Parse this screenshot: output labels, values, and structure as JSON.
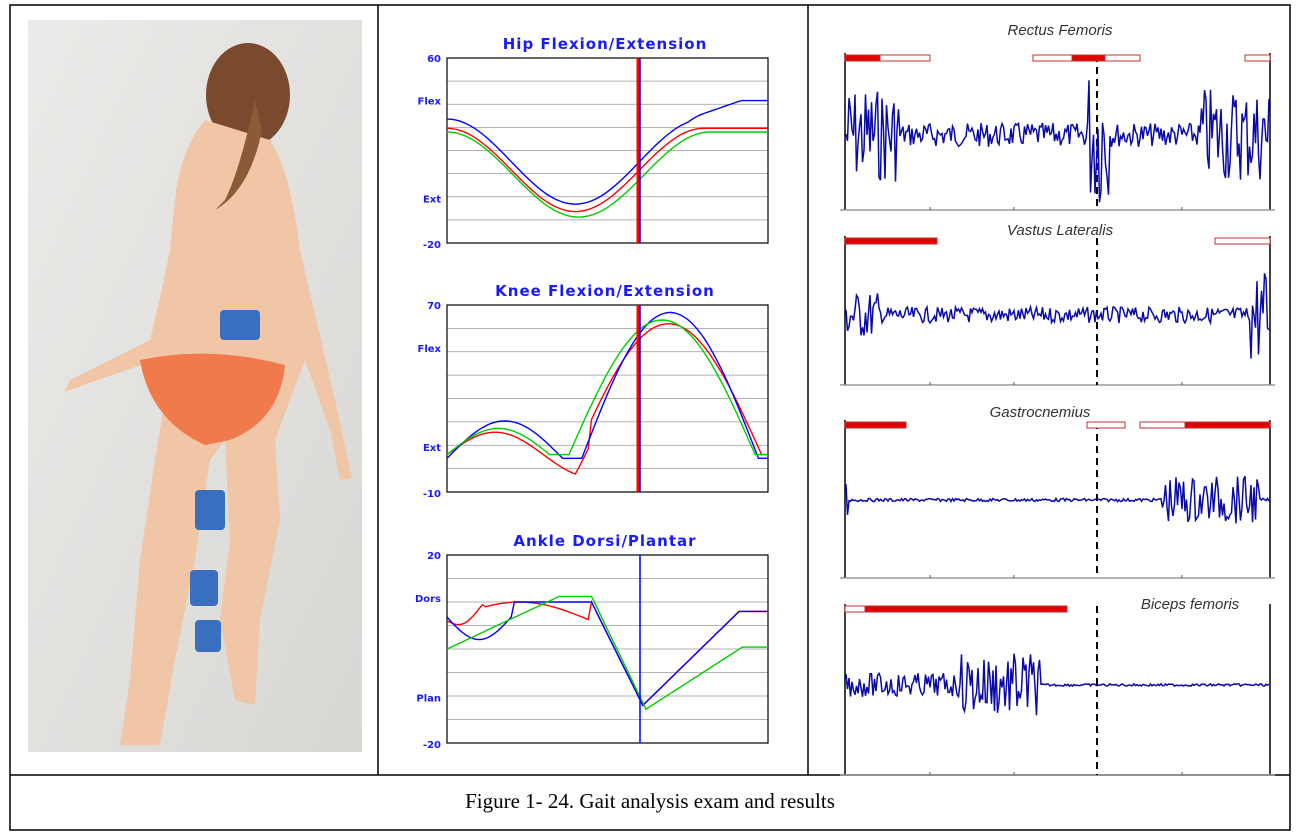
{
  "figure": {
    "angle_charts": [
      {
        "title": "Hip Flexion/Extension",
        "y_max": "60",
        "upper_label": "Flex",
        "lower_label": "Ext",
        "y_min": "-20"
      },
      {
        "title": "Knee Flexion/Extension",
        "y_max": "70",
        "upper_label": "Flex",
        "lower_label": "Ext",
        "y_min": "-10"
      },
      {
        "title": "Ankle Dorsi/Plantar",
        "y_max": "20",
        "upper_label": "Dors",
        "lower_label": "Plan",
        "y_min": "-20"
      }
    ],
    "emg_panels": [
      "Rectus Femoris",
      "Vastus Lateralis",
      "Gastrocnemius",
      "Biceps femoris"
    ],
    "caption": "Figure 1- 24. Gait analysis exam and results"
  }
}
